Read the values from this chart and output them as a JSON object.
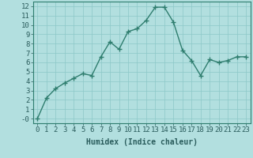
{
  "x": [
    0,
    1,
    2,
    3,
    4,
    5,
    6,
    7,
    8,
    9,
    10,
    11,
    12,
    13,
    14,
    15,
    16,
    17,
    18,
    19,
    20,
    21,
    22,
    23
  ],
  "y": [
    0.0,
    2.2,
    3.2,
    3.8,
    4.3,
    4.8,
    4.6,
    6.6,
    8.2,
    7.4,
    9.3,
    9.6,
    10.5,
    11.9,
    11.9,
    10.3,
    7.3,
    6.2,
    4.6,
    6.3,
    6.0,
    6.2,
    6.6,
    6.6
  ],
  "xlabel": "Humidex (Indice chaleur)",
  "ylim": [
    -0.5,
    12.5
  ],
  "xlim": [
    -0.5,
    23.5
  ],
  "yticks": [
    0,
    1,
    2,
    3,
    4,
    5,
    6,
    7,
    8,
    9,
    10,
    11,
    12
  ],
  "ytick_labels": [
    "-0",
    "1",
    "2",
    "3",
    "4",
    "5",
    "6",
    "7",
    "8",
    "9",
    "10",
    "11",
    "12"
  ],
  "xticks": [
    0,
    1,
    2,
    3,
    4,
    5,
    6,
    7,
    8,
    9,
    10,
    11,
    12,
    13,
    14,
    15,
    16,
    17,
    18,
    19,
    20,
    21,
    22,
    23
  ],
  "line_color": "#2e7d6e",
  "marker": "+",
  "background_color": "#b2dfdf",
  "grid_color": "#8cc8c8",
  "font_color": "#2a5c5c",
  "xlabel_fontsize": 7,
  "tick_fontsize": 6.5,
  "xlabel_fontweight": "bold"
}
